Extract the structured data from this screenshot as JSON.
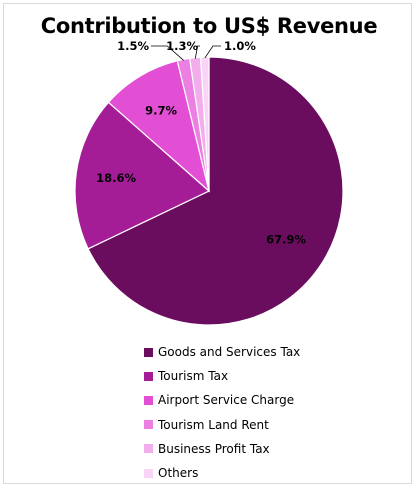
{
  "chart_data": {
    "type": "pie",
    "title": "Contribution to US$ Revenue",
    "categories": [
      "Goods and Services Tax",
      "Tourism Tax",
      "Airport Service Charge",
      "Tourism Land Rent",
      "Business Profit Tax",
      "Others"
    ],
    "values": [
      67.9,
      18.6,
      9.7,
      1.5,
      1.3,
      1.0
    ],
    "labels": [
      "67.9%",
      "18.6%",
      "9.7%",
      "1.5%",
      "1.3%",
      "1.0%"
    ],
    "colors": [
      "#6b0d5f",
      "#a41c96",
      "#e34fd4",
      "#eb7fe2",
      "#f2aeec",
      "#f8d5f5"
    ],
    "start_angle_deg": 0,
    "direction": "clockwise",
    "legend_position": "bottom"
  }
}
